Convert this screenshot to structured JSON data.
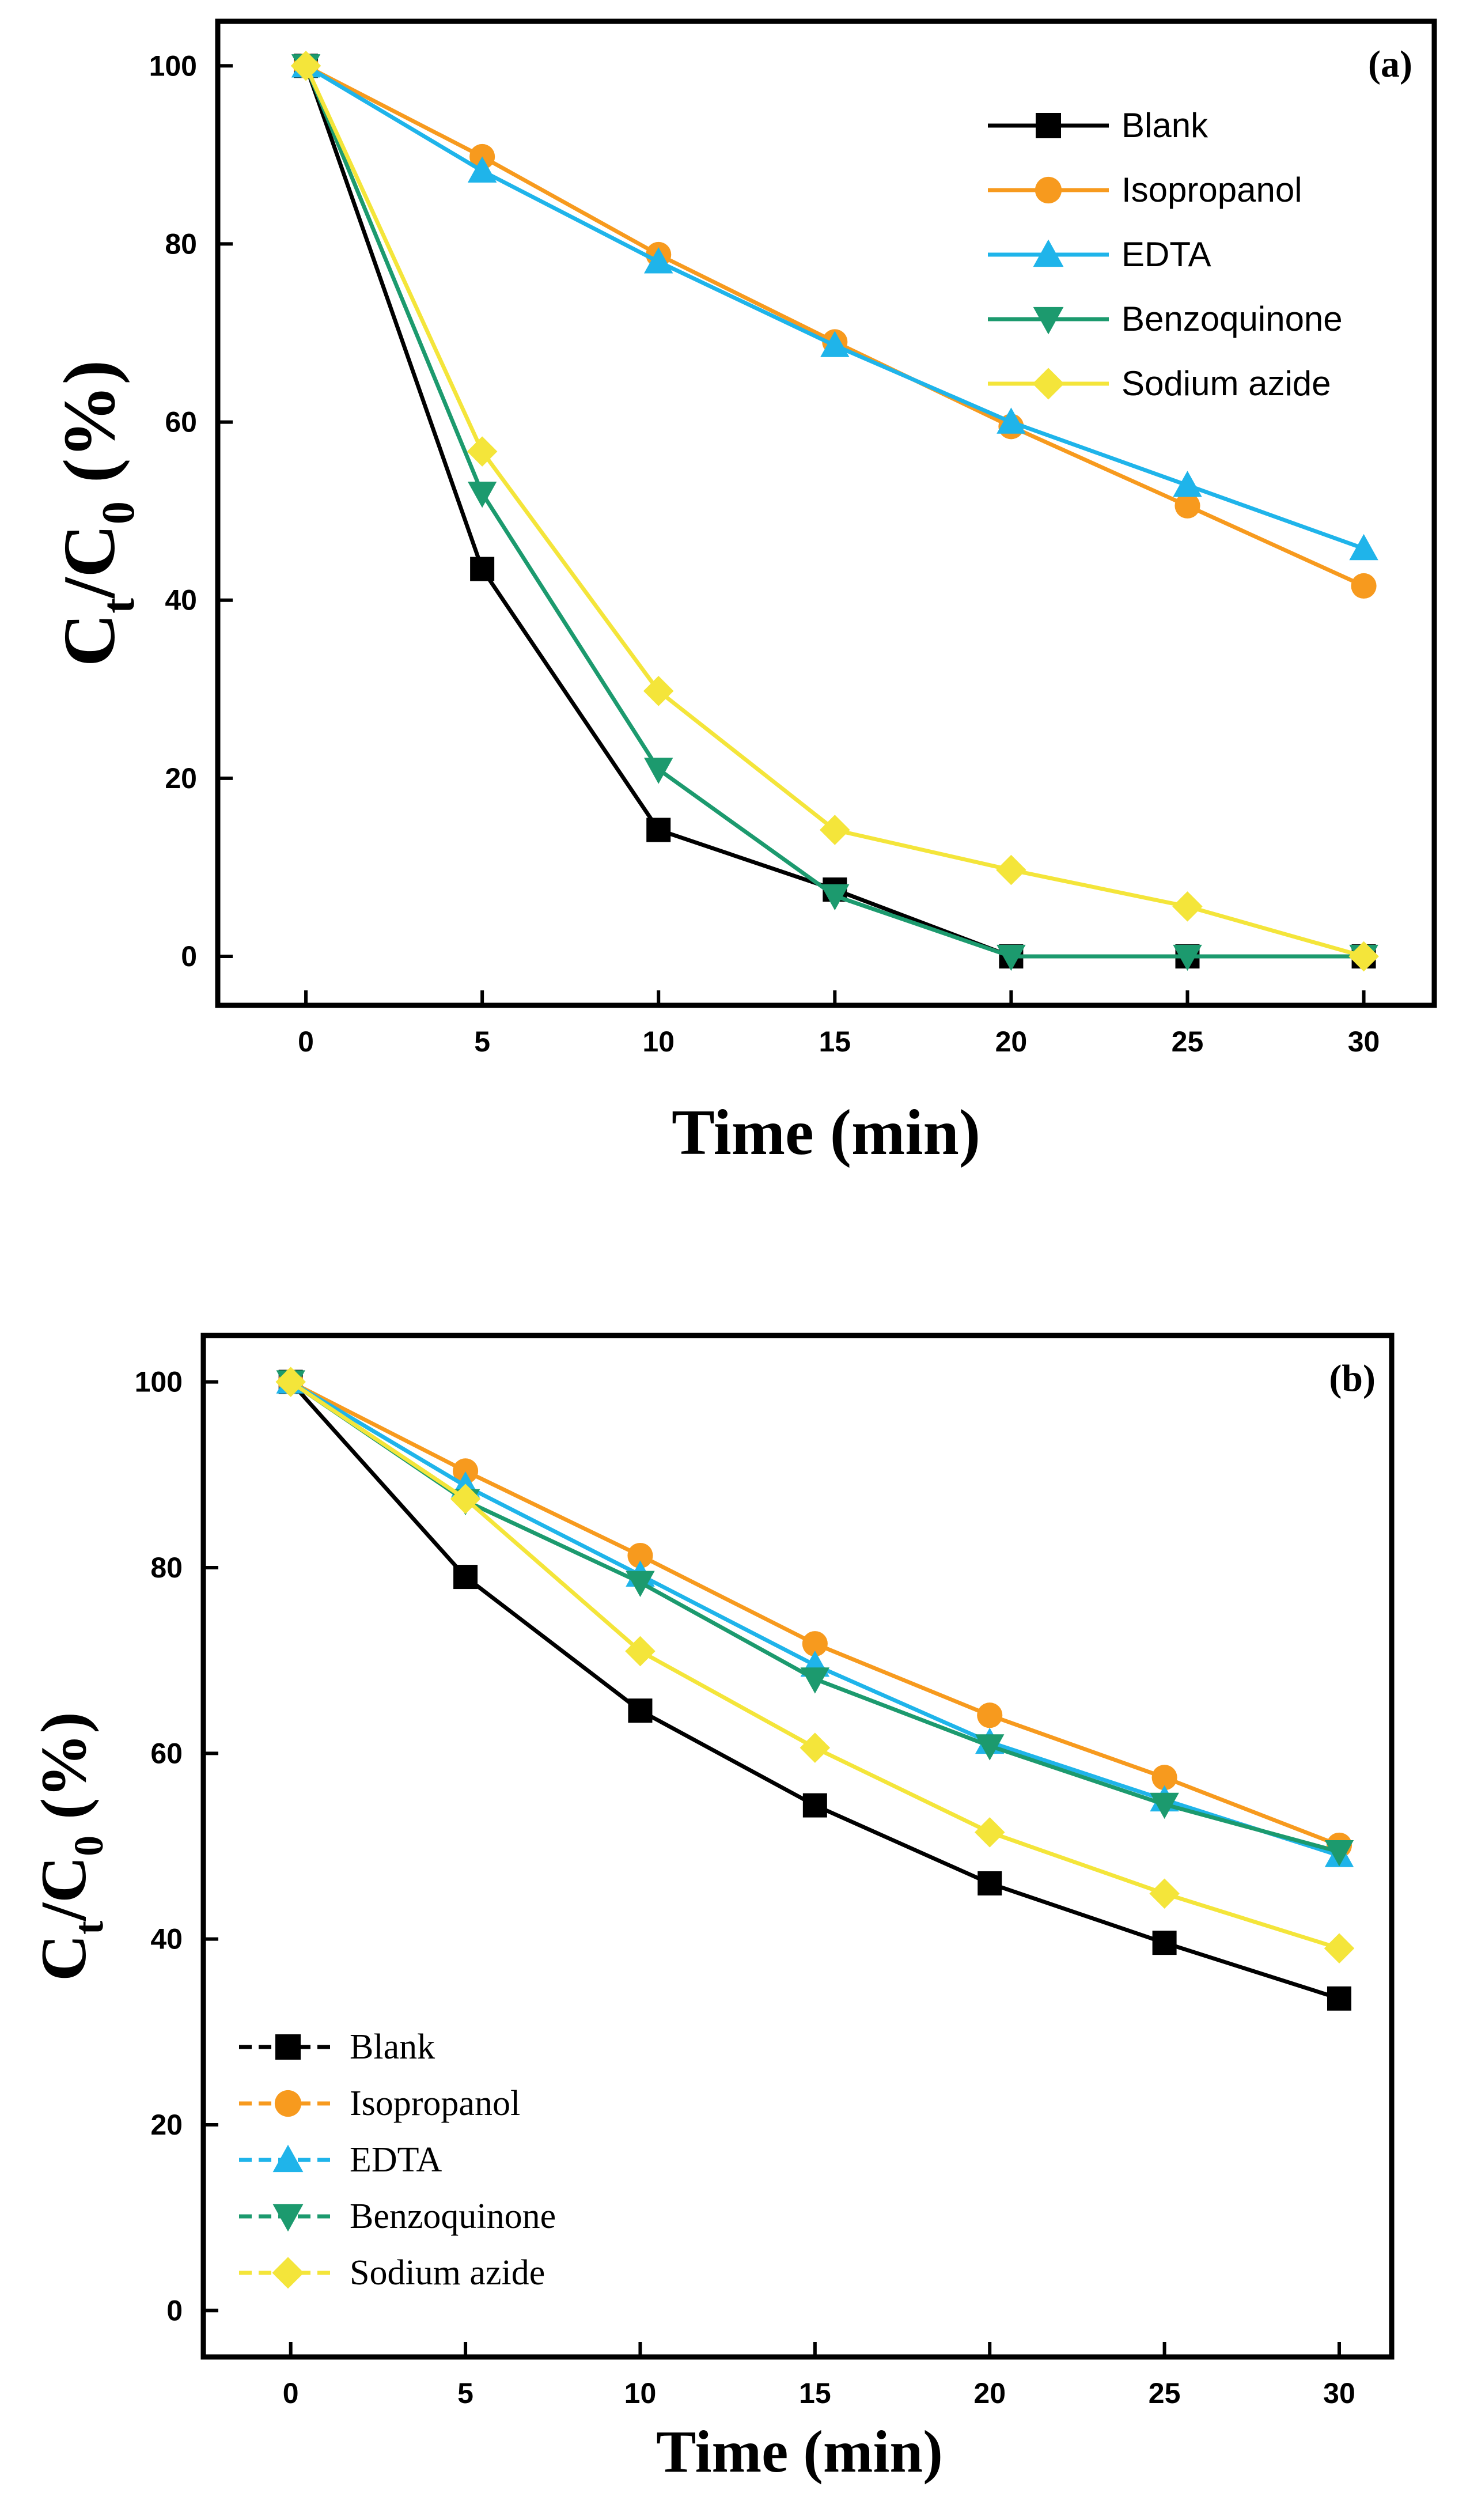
{
  "chart_data": [
    {
      "type": "line",
      "panel_label": "(a)",
      "xlabel": "Time (min)",
      "ylabel": "Ct/C0 (%)",
      "ylabel_parts": {
        "c1": "C",
        "sub1": "t",
        "slash": "/C",
        "sub2": "0",
        "unit": " (%)"
      },
      "x": [
        0,
        5,
        10,
        15,
        20,
        25,
        30
      ],
      "xlim": [
        -2.5,
        32
      ],
      "ylim": [
        -5.5,
        105
      ],
      "xticks": [
        0,
        5,
        10,
        15,
        20,
        25,
        30
      ],
      "yticks": [
        0,
        20,
        40,
        60,
        80,
        100
      ],
      "legend_position": "top-right",
      "series": [
        {
          "name": "Blank",
          "color": "#000000",
          "marker": "square",
          "values": [
            100,
            43.5,
            14.2,
            7.5,
            0,
            0,
            0
          ]
        },
        {
          "name": "Isopropanol",
          "color": "#F79A1E",
          "marker": "circle",
          "values": [
            100,
            89.8,
            78.8,
            69.0,
            59.5,
            50.6,
            41.6
          ]
        },
        {
          "name": "EDTA",
          "color": "#1FB4EA",
          "marker": "triangle-up",
          "values": [
            100,
            88.2,
            78.0,
            68.6,
            60.0,
            52.9,
            45.8
          ]
        },
        {
          "name": "Benzoquinone",
          "color": "#1C9A6E",
          "marker": "triangle-down",
          "values": [
            100,
            52.0,
            21.0,
            6.8,
            0,
            0,
            0
          ]
        },
        {
          "name": "Sodium azide",
          "color": "#F4E53A",
          "marker": "diamond",
          "values": [
            100,
            56.7,
            29.8,
            14.2,
            9.7,
            5.6,
            0
          ]
        }
      ]
    },
    {
      "type": "line",
      "panel_label": "(b)",
      "xlabel": "Time (min)",
      "ylabel": "Ct/C0 (%)",
      "ylabel_parts": {
        "c1": "C",
        "sub1": "t",
        "slash": "/C",
        "sub2": "0",
        "unit": " (%)"
      },
      "x": [
        0,
        5,
        10,
        15,
        20,
        25,
        30
      ],
      "xlim": [
        -2.5,
        31.5
      ],
      "ylim": [
        -5,
        105
      ],
      "xticks": [
        0,
        5,
        10,
        15,
        20,
        25,
        30
      ],
      "yticks": [
        0,
        20,
        40,
        60,
        80,
        100
      ],
      "legend_position": "bottom-left",
      "series": [
        {
          "name": "Blank",
          "color": "#000000",
          "marker": "square",
          "values": [
            100,
            79.0,
            64.6,
            54.4,
            46.0,
            39.6,
            33.6
          ]
        },
        {
          "name": "Isopropanol",
          "color": "#F79A1E",
          "marker": "circle",
          "values": [
            100,
            90.4,
            81.3,
            71.8,
            64.1,
            57.4,
            50.1
          ]
        },
        {
          "name": "EDTA",
          "color": "#1FB4EA",
          "marker": "triangle-up",
          "values": [
            100,
            88.8,
            79.2,
            69.5,
            61.2,
            55.0,
            49.0
          ]
        },
        {
          "name": "Benzoquinone",
          "color": "#1C9A6E",
          "marker": "triangle-down",
          "values": [
            100,
            87.2,
            78.4,
            68.0,
            60.8,
            54.5,
            49.4
          ]
        },
        {
          "name": "Sodium azide",
          "color": "#F4E53A",
          "marker": "diamond",
          "values": [
            100,
            87.4,
            71.0,
            60.6,
            51.5,
            44.9,
            39.0
          ]
        }
      ]
    }
  ]
}
